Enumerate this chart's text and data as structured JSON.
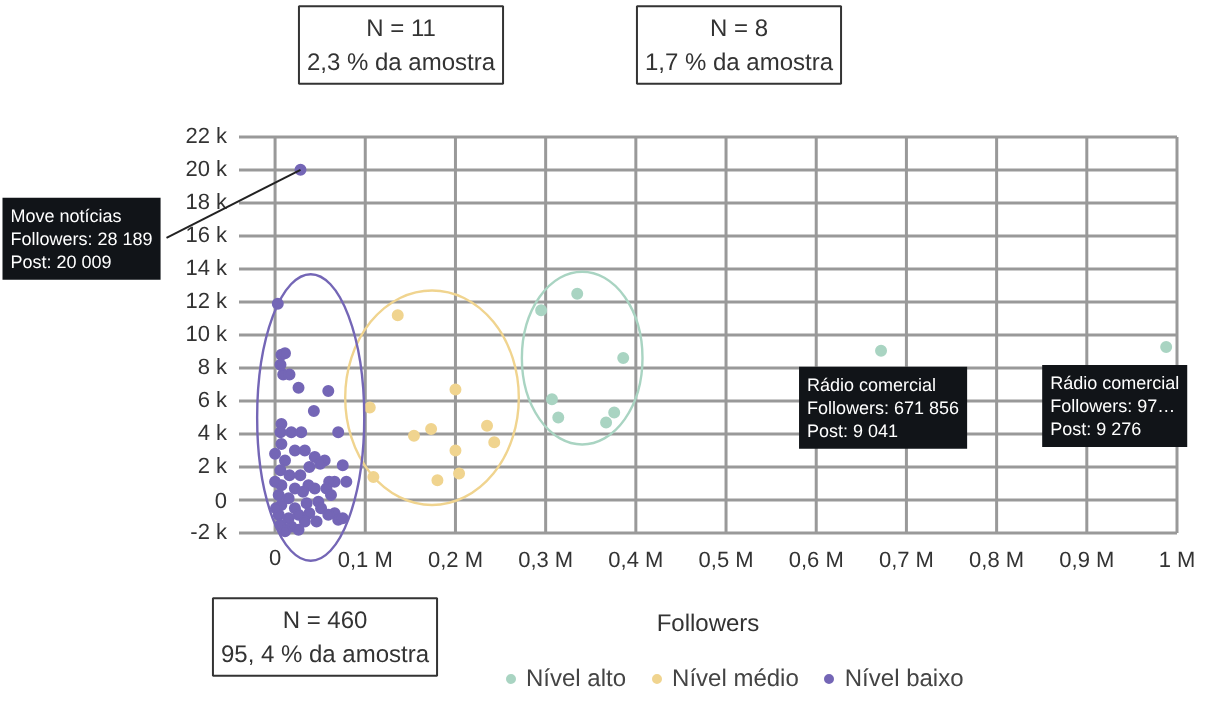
{
  "chart_data": {
    "type": "scatter",
    "xlabel": "Followers",
    "xlim": [
      -40000,
      1000000
    ],
    "ylim": [
      -2000,
      22000
    ],
    "xticks": [
      0,
      {
        "value": 100000,
        "label": "0,1 M"
      },
      {
        "value": 200000,
        "label": "0,2 M"
      },
      {
        "value": 300000,
        "label": "0,3 M"
      },
      {
        "value": 400000,
        "label": "0,4 M"
      },
      {
        "value": 500000,
        "label": "0,5 M"
      },
      {
        "value": 600000,
        "label": "0,6 M"
      },
      {
        "value": 700000,
        "label": "0,7 M"
      },
      {
        "value": 800000,
        "label": "0,8 M"
      },
      {
        "value": 900000,
        "label": "0,9 M"
      },
      {
        "value": 1000000,
        "label": "1 M"
      }
    ],
    "yticks": [
      {
        "value": -2000,
        "label": "-2 k"
      },
      0,
      {
        "value": 2000,
        "label": "2 k"
      },
      {
        "value": 4000,
        "label": "4 k"
      },
      {
        "value": 6000,
        "label": "6 k"
      },
      {
        "value": 8000,
        "label": "8 k"
      },
      {
        "value": 10000,
        "label": "10 k"
      },
      {
        "value": 12000,
        "label": "12 k"
      },
      {
        "value": 14000,
        "label": "14 k"
      },
      {
        "value": 16000,
        "label": "16 k"
      },
      {
        "value": 18000,
        "label": "18 k"
      },
      {
        "value": 20000,
        "label": "20 k"
      },
      {
        "value": 22000,
        "label": "22 k"
      }
    ],
    "grid": true,
    "legend": "bottom",
    "marker": "circle",
    "series": [
      {
        "name": "Nível alto",
        "color": "#a9d4c2",
        "x": [
          335000,
          295000,
          386000,
          307000,
          314000,
          376000,
          367000,
          671856,
          988000
        ],
        "values": [
          12500,
          11500,
          8600,
          6100,
          5000,
          5300,
          4700,
          9041,
          9276
        ]
      },
      {
        "name": "Nível médio",
        "color": "#f0d48f",
        "x": [
          136000,
          105000,
          200000,
          154000,
          173000,
          235000,
          243000,
          200000,
          109000,
          180000,
          204000
        ],
        "values": [
          11200,
          5600,
          6700,
          3900,
          4300,
          4500,
          3500,
          3000,
          1400,
          1200,
          1600
        ]
      },
      {
        "name": "Nível baixo",
        "color": "#7466b6",
        "x": [
          28189,
          3000,
          7000,
          11000,
          9000,
          16000,
          6000,
          26000,
          59000,
          43000,
          70000,
          7000,
          6000,
          18000,
          29000,
          7000,
          22000,
          33000,
          44000,
          11000,
          55000,
          75000,
          6000,
          16000,
          28000,
          38000,
          50000,
          66000,
          79000,
          7000,
          22000,
          37000,
          60000,
          4000,
          15000,
          31000,
          44000,
          57000,
          7000,
          22000,
          35000,
          48000,
          62000,
          4000,
          15000,
          26000,
          38000,
          51000,
          66000,
          6000,
          18000,
          33000,
          46000,
          70000,
          75000,
          11000,
          26000,
          59000,
          0,
          0,
          1000
        ],
        "values": [
          20009,
          11900,
          8800,
          8900,
          7600,
          7600,
          8200,
          6800,
          6600,
          5400,
          4100,
          4600,
          4100,
          4100,
          4100,
          3400,
          3000,
          3000,
          2600,
          2400,
          2400,
          2100,
          1800,
          1500,
          1500,
          2000,
          2200,
          1100,
          1100,
          900,
          700,
          900,
          1100,
          300,
          100,
          500,
          700,
          700,
          -300,
          -500,
          -200,
          -100,
          300,
          -900,
          -1100,
          -900,
          -800,
          -500,
          -800,
          -1500,
          -1600,
          -1300,
          -1300,
          -1200,
          -1100,
          -1900,
          -1800,
          -900,
          1100,
          2800,
          -500
        ]
      }
    ],
    "annotations": [
      "N = 11\n2,3 % da amostra",
      "N = 8\n1,7 % da amostra",
      "N = 460\n95, 4 % da amostra",
      {
        "text": "Move notícias\nFollowers: 28 189\nPost: 20 009",
        "x": 28189,
        "y": 20009
      },
      {
        "text": "Rádio comercial\nFollowers: 671 856\nPost: 9 041",
        "x": 671856,
        "y": 9041
      },
      {
        "text": "Rádio comercial\nFollowers: 97…\nPost: 9 276",
        "x": 988000,
        "y": 9276
      }
    ]
  }
}
